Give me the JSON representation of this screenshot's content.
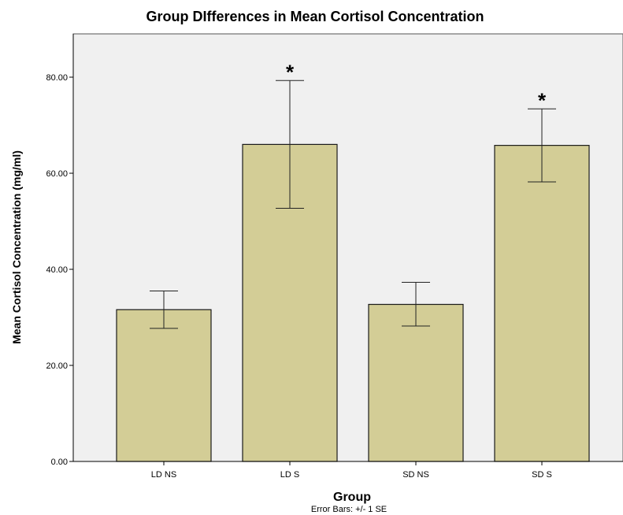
{
  "chart_data": {
    "type": "bar",
    "title": "Group DIfferences in Mean Cortisol Concentration",
    "xlabel": "Group",
    "ylabel": "Mean Cortisol Concentration (mg/ml)",
    "footnote": "Error Bars: +/- 1 SE",
    "categories": [
      "LD NS",
      "LD S",
      "SD NS",
      "SD S"
    ],
    "values": [
      31.6,
      66.0,
      32.7,
      65.8
    ],
    "error_low": [
      27.7,
      52.7,
      28.2,
      58.2
    ],
    "error_high": [
      35.5,
      79.3,
      37.3,
      73.4
    ],
    "significance": [
      "",
      "*",
      "",
      "*"
    ],
    "ylim": [
      0,
      88
    ],
    "yticks": [
      0,
      20,
      40,
      60,
      80
    ],
    "ytick_labels": [
      "0.00",
      "20.00",
      "40.00",
      "60.00",
      "80.00"
    ],
    "grid": false,
    "colors": {
      "bar_fill": "#d3cd96",
      "bar_stroke": "#1a1a1a",
      "plot_background": "#f0f0f0",
      "error_bar": "#222222"
    }
  }
}
